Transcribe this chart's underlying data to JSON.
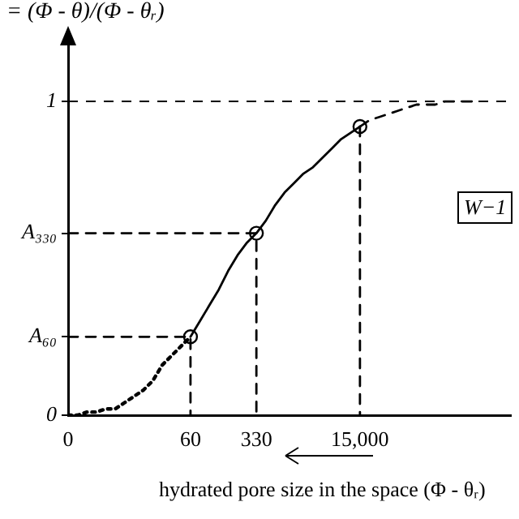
{
  "chart_data": {
    "type": "line",
    "title": "= (Φ - θ)/(Φ - θᵣ)",
    "xlabel": "hydrated pore size in the space  (Φ - θᵣ)",
    "annotations": [
      "W−1"
    ],
    "categories": [
      "0",
      null,
      null,
      null,
      null,
      null,
      null,
      null,
      null,
      null,
      null,
      null,
      null,
      "60",
      null,
      null,
      null,
      null,
      null,
      null,
      "330",
      null,
      null,
      null,
      null,
      null,
      null,
      null,
      null,
      null,
      null,
      "15,000",
      null,
      null,
      null,
      null,
      null,
      null,
      null,
      null,
      null,
      null,
      null,
      null,
      null,
      null,
      null,
      null
    ],
    "ylim": [
      0,
      1.22
    ],
    "yticks": [
      0,
      {
        "value": 0.25,
        "label": "A₆₀"
      },
      {
        "value": 0.58,
        "label": "A₃₃₀"
      },
      1
    ],
    "grid": false,
    "legend": false,
    "ref_lines": [
      {
        "axis": "y",
        "value": 1,
        "line_style": "dashed",
        "color": "#000000"
      }
    ],
    "series": [
      {
        "color": "#000000",
        "line_style": "dotted",
        "marker": "none",
        "values": [
          0,
          0,
          0.01,
          0.01,
          0.02,
          0.02,
          0.04,
          0.06,
          0.08,
          0.11,
          0.16,
          0.19,
          0.22,
          0.25,
          null,
          null,
          null,
          null,
          null,
          null,
          null,
          null,
          null,
          null,
          null,
          null,
          null,
          null,
          null,
          null,
          null,
          null,
          null,
          null,
          null,
          null,
          null,
          null,
          null,
          null,
          null,
          null,
          null,
          null,
          null,
          null,
          null,
          null
        ]
      },
      {
        "color": "#000000",
        "line_style": "solid",
        "marker": "none",
        "values": [
          null,
          null,
          null,
          null,
          null,
          null,
          null,
          null,
          null,
          null,
          null,
          null,
          null,
          0.25,
          0.3,
          0.35,
          0.4,
          0.46,
          0.51,
          0.55,
          0.58,
          0.62,
          0.67,
          0.71,
          0.74,
          0.77,
          0.79,
          0.82,
          0.85,
          0.88,
          0.9,
          0.92,
          null,
          null,
          null,
          null,
          null,
          null,
          null,
          null,
          null,
          null,
          null,
          null,
          null,
          null,
          null,
          null
        ]
      },
      {
        "color": "#000000",
        "line_style": "dashed",
        "marker": "none",
        "values": [
          null,
          null,
          null,
          null,
          null,
          null,
          null,
          null,
          null,
          null,
          null,
          null,
          null,
          null,
          null,
          null,
          null,
          null,
          null,
          null,
          null,
          null,
          null,
          null,
          null,
          null,
          null,
          null,
          null,
          null,
          null,
          0.92,
          0.94,
          0.95,
          0.96,
          0.97,
          0.98,
          0.99,
          0.99,
          0.99,
          1,
          1,
          1,
          1,
          null,
          null,
          null,
          null
        ]
      },
      {
        "color": "#000000",
        "line_style": "dashed",
        "marker": "none",
        "x": [
          "0",
          "60",
          "60"
        ],
        "values": [
          0.25,
          0.25,
          0
        ]
      },
      {
        "color": "#000000",
        "line_style": "dashed",
        "marker": "none",
        "x": [
          "0",
          "330",
          "330"
        ],
        "values": [
          0.58,
          0.58,
          0
        ]
      },
      {
        "color": "#000000",
        "line_style": "dashed",
        "marker": "none",
        "x": [
          "15,000",
          "15,000"
        ],
        "values": [
          0.92,
          0
        ]
      },
      {
        "type": "scatter",
        "color": "#000000",
        "marker": "circle",
        "x": [
          "60",
          "330",
          "15,000"
        ],
        "values": [
          0.25,
          0.58,
          0.92
        ]
      }
    ]
  }
}
